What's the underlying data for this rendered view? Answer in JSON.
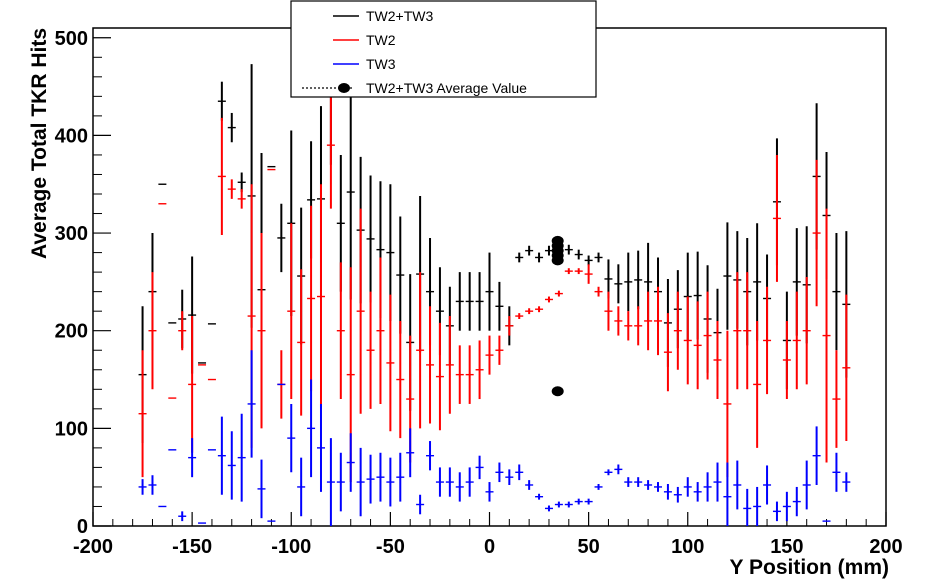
{
  "chart_data": {
    "type": "scatter",
    "xlabel": "Y Position (mm)",
    "ylabel": "Average Total TKR Hits",
    "xlim": [
      -200,
      200
    ],
    "ylim": [
      0,
      510
    ],
    "x_ticks": [
      -200,
      -150,
      -100,
      -50,
      0,
      50,
      100,
      150,
      200
    ],
    "y_ticks": [
      0,
      100,
      200,
      300,
      400,
      500
    ],
    "x_tick_labels": [
      "-200",
      "-150",
      "-100",
      "-50",
      "0",
      "50",
      "100",
      "150",
      "200"
    ],
    "y_tick_labels": [
      "0",
      "100",
      "200",
      "300",
      "400",
      "500"
    ],
    "grid": false,
    "legend_position": "top-center",
    "series": [
      {
        "name": "TW2+TW3",
        "color": "#000000",
        "marker": "errorbar",
        "x": [
          -175,
          -170,
          -165,
          -160,
          -155,
          -150,
          -145,
          -140,
          -135,
          -130,
          -125,
          -120,
          -115,
          -110,
          -105,
          -100,
          -95,
          -90,
          -85,
          -80,
          -75,
          -70,
          -65,
          -60,
          -55,
          -50,
          -45,
          -40,
          -35,
          -30,
          -25,
          -20,
          -15,
          -10,
          -5,
          0,
          5,
          10,
          15,
          20,
          25,
          30,
          35,
          40,
          45,
          50,
          55,
          60,
          65,
          70,
          75,
          80,
          85,
          90,
          95,
          100,
          105,
          110,
          115,
          120,
          125,
          130,
          135,
          140,
          145,
          150,
          155,
          160,
          165,
          170,
          175,
          180
        ],
        "y": [
          155,
          240,
          350,
          208,
          212,
          216,
          167,
          207,
          435,
          408,
          352,
          338,
          242,
          368,
          295,
          310,
          256,
          334,
          335,
          450,
          310,
          342,
          303,
          294,
          283,
          280,
          257,
          188,
          258,
          240,
          220,
          205,
          230,
          230,
          230,
          240,
          225,
          205,
          275,
          282,
          275,
          282,
          283,
          283,
          278,
          272,
          275,
          253,
          248,
          250,
          252,
          250,
          240,
          208,
          222,
          235,
          236,
          212,
          198,
          256,
          252,
          240,
          250,
          233,
          332,
          190,
          250,
          247,
          358,
          318,
          240,
          227
        ],
        "err": [
          70,
          60,
          0,
          0,
          30,
          60,
          0,
          0,
          20,
          15,
          10,
          135,
          140,
          0,
          35,
          95,
          70,
          60,
          95,
          80,
          70,
          110,
          75,
          65,
          70,
          70,
          60,
          70,
          80,
          55,
          45,
          40,
          30,
          30,
          30,
          40,
          25,
          20,
          5,
          5,
          5,
          5,
          5,
          5,
          5,
          5,
          5,
          20,
          20,
          30,
          30,
          40,
          35,
          45,
          40,
          45,
          45,
          55,
          45,
          55,
          50,
          55,
          60,
          45,
          65,
          50,
          55,
          60,
          75,
          65,
          60,
          75
        ]
      },
      {
        "name": "TW2",
        "color": "#ff0000",
        "marker": "errorbar",
        "x": [
          -175,
          -170,
          -165,
          -160,
          -155,
          -150,
          -145,
          -140,
          -135,
          -130,
          -125,
          -120,
          -115,
          -110,
          -105,
          -100,
          -95,
          -90,
          -85,
          -80,
          -75,
          -70,
          -65,
          -60,
          -55,
          -50,
          -45,
          -40,
          -35,
          -30,
          -25,
          -20,
          -15,
          -10,
          -5,
          0,
          5,
          10,
          15,
          20,
          25,
          30,
          35,
          40,
          45,
          50,
          55,
          60,
          65,
          70,
          75,
          80,
          85,
          90,
          95,
          100,
          105,
          110,
          115,
          120,
          125,
          130,
          135,
          140,
          145,
          150,
          155,
          160,
          165,
          170,
          175,
          180
        ],
        "y": [
          115,
          200,
          330,
          131,
          200,
          145,
          165,
          150,
          358,
          345,
          335,
          215,
          200,
          365,
          145,
          220,
          188,
          233,
          235,
          390,
          200,
          155,
          220,
          180,
          200,
          167,
          150,
          130,
          180,
          165,
          153,
          165,
          155,
          155,
          160,
          175,
          180,
          205,
          215,
          220,
          222,
          232,
          238,
          261,
          261,
          258,
          240,
          220,
          210,
          205,
          205,
          210,
          210,
          178,
          200,
          190,
          185,
          195,
          170,
          125,
          200,
          200,
          145,
          190,
          315,
          170,
          190,
          200,
          300,
          195,
          130,
          162
        ],
        "err": [
          65,
          60,
          0,
          0,
          20,
          70,
          0,
          0,
          60,
          10,
          10,
          135,
          100,
          0,
          35,
          90,
          75,
          95,
          115,
          65,
          70,
          110,
          105,
          60,
          75,
          70,
          60,
          65,
          80,
          60,
          55,
          50,
          30,
          30,
          30,
          20,
          15,
          10,
          3,
          3,
          3,
          3,
          3,
          3,
          3,
          10,
          5,
          20,
          15,
          15,
          20,
          30,
          35,
          40,
          40,
          45,
          45,
          45,
          40,
          75,
          60,
          60,
          65,
          55,
          65,
          40,
          50,
          55,
          75,
          130,
          50,
          75
        ]
      },
      {
        "name": "TW3",
        "color": "#0000ff",
        "marker": "errorbar",
        "x": [
          -175,
          -170,
          -165,
          -160,
          -155,
          -150,
          -145,
          -140,
          -135,
          -130,
          -125,
          -120,
          -115,
          -110,
          -105,
          -100,
          -95,
          -90,
          -85,
          -80,
          -75,
          -70,
          -65,
          -60,
          -55,
          -50,
          -45,
          -40,
          -35,
          -30,
          -25,
          -20,
          -15,
          -10,
          -5,
          0,
          5,
          10,
          15,
          20,
          25,
          30,
          35,
          40,
          45,
          50,
          55,
          60,
          65,
          70,
          75,
          80,
          85,
          90,
          95,
          100,
          105,
          110,
          115,
          120,
          125,
          130,
          135,
          140,
          145,
          150,
          155,
          160,
          165,
          170,
          175,
          180
        ],
        "y": [
          40,
          42,
          20,
          78,
          10,
          70,
          3,
          78,
          72,
          62,
          70,
          125,
          38,
          5,
          145,
          90,
          40,
          100,
          80,
          45,
          45,
          65,
          45,
          48,
          50,
          45,
          50,
          75,
          22,
          72,
          45,
          45,
          40,
          45,
          60,
          35,
          55,
          50,
          55,
          42,
          30,
          18,
          22,
          22,
          25,
          25,
          40,
          55,
          58,
          45,
          45,
          42,
          40,
          35,
          32,
          40,
          35,
          40,
          45,
          30,
          42,
          18,
          20,
          42,
          15,
          20,
          25,
          42,
          72,
          5,
          55,
          45
        ],
        "err": [
          8,
          10,
          0,
          0,
          5,
          20,
          0,
          0,
          40,
          35,
          45,
          55,
          30,
          0,
          0,
          35,
          30,
          50,
          45,
          45,
          30,
          30,
          35,
          25,
          25,
          25,
          25,
          25,
          10,
          15,
          15,
          15,
          15,
          15,
          12,
          10,
          10,
          8,
          8,
          5,
          3,
          3,
          3,
          3,
          3,
          3,
          3,
          3,
          5,
          5,
          5,
          5,
          5,
          8,
          8,
          10,
          10,
          15,
          20,
          35,
          25,
          20,
          20,
          20,
          10,
          15,
          15,
          25,
          30,
          0,
          20,
          10
        ]
      },
      {
        "name": "TW2+TW3 Average Value",
        "color": "#000000",
        "marker": "circle",
        "x": [
          34.4,
          34.4,
          34.4,
          34.4,
          34.4,
          34.4
        ],
        "y": [
          292,
          287,
          282,
          277,
          272,
          138
        ],
        "err": [
          0,
          0,
          0,
          0,
          0,
          0
        ]
      }
    ]
  },
  "legend": {
    "entries": [
      "TW2+TW3",
      "TW2",
      "TW3",
      "TW2+TW3 Average Value"
    ]
  }
}
